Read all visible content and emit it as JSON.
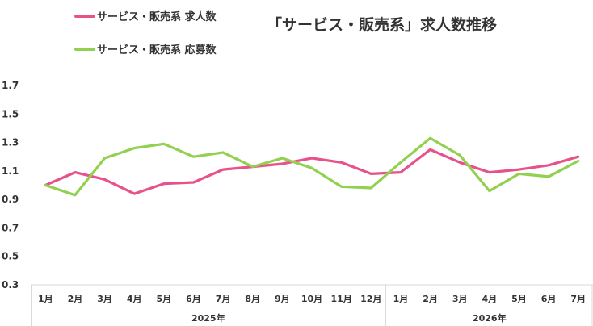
{
  "chart_data": {
    "type": "line",
    "title": "「サービス・販売系」求人数推移",
    "categories": [
      "1月",
      "2月",
      "3月",
      "4月",
      "5月",
      "6月",
      "7月",
      "8月",
      "9月",
      "10月",
      "11月",
      "12月",
      "1月",
      "2月",
      "3月",
      "4月",
      "5月",
      "6月",
      "7月"
    ],
    "groups": [
      {
        "label": "2025年",
        "count": 12
      },
      {
        "label": "2026年",
        "count": 7
      }
    ],
    "series": [
      {
        "name": "サービス・販売系 求人数",
        "color": "#e8528a",
        "values": [
          1.0,
          1.09,
          1.04,
          0.94,
          1.01,
          1.02,
          1.11,
          1.13,
          1.15,
          1.19,
          1.16,
          1.08,
          1.09,
          1.25,
          1.16,
          1.09,
          1.11,
          1.14,
          1.2
        ]
      },
      {
        "name": "サービス・販売系 応募数",
        "color": "#92d050",
        "values": [
          1.0,
          0.93,
          1.19,
          1.26,
          1.29,
          1.2,
          1.23,
          1.13,
          1.19,
          1.12,
          0.99,
          0.98,
          1.16,
          1.33,
          1.21,
          0.96,
          1.08,
          1.06,
          1.17
        ]
      }
    ],
    "yticks": [
      "0.3",
      "0.5",
      "0.7",
      "0.9",
      "1.1",
      "1.3",
      "1.5",
      "1.7"
    ],
    "ylim": [
      0.3,
      1.7
    ],
    "grid": false,
    "legend": "top-left"
  }
}
